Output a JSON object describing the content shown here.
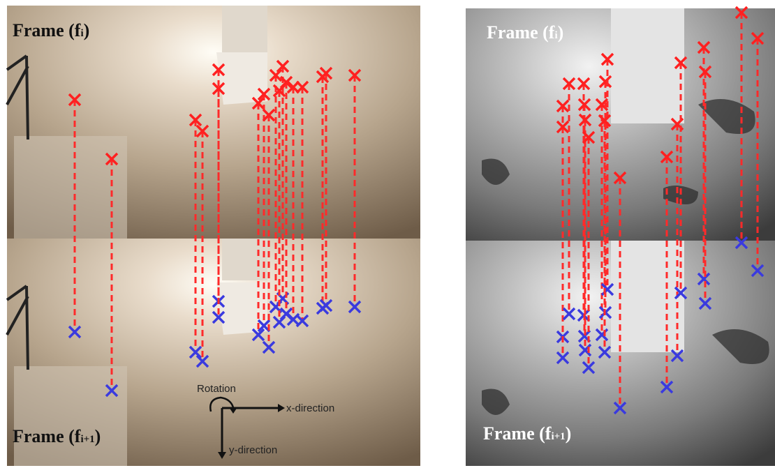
{
  "panels": [
    {
      "top_label": {
        "prefix": "Frame (f",
        "sub": "i",
        "suffix": ")"
      },
      "bottom_label": {
        "prefix": "Frame (f",
        "sub": "i+1",
        "suffix": ")"
      }
    },
    {
      "top_label": {
        "prefix": "Frame (f",
        "sub": "i",
        "suffix": ")"
      },
      "bottom_label": {
        "prefix": "Frame (f",
        "sub": "i+1",
        "suffix": ")"
      }
    }
  ],
  "annotation": {
    "rotation": "Rotation",
    "x_direction": "x-direction",
    "y_direction": "y-direction"
  }
}
